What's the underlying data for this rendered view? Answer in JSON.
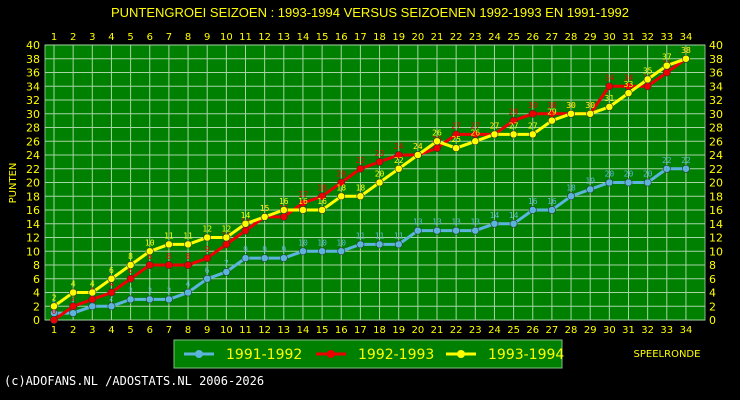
{
  "chart_data": {
    "type": "line",
    "title": "PUNTENGROEI  SEIZOEN : 1993-1994 VERSUS SEIZOENEN 1992-1993 EN 1991-1992",
    "xlabel": "SPEELRONDE",
    "ylabel": "PUNTEN",
    "x": [
      1,
      2,
      3,
      4,
      5,
      6,
      7,
      8,
      9,
      10,
      11,
      12,
      13,
      14,
      15,
      16,
      17,
      18,
      19,
      20,
      21,
      22,
      23,
      24,
      25,
      26,
      27,
      28,
      29,
      30,
      31,
      32,
      33,
      34
    ],
    "ylim": [
      0,
      40
    ],
    "yticks": [
      0,
      2,
      4,
      6,
      8,
      10,
      12,
      14,
      16,
      18,
      20,
      22,
      24,
      26,
      28,
      30,
      32,
      34,
      36,
      38,
      40
    ],
    "grid": true,
    "legend_position": "bottom",
    "series": [
      {
        "name": "1991-1992",
        "color": "#5bb4dc",
        "values": [
          1,
          1,
          2,
          2,
          3,
          3,
          3,
          4,
          6,
          7,
          9,
          9,
          9,
          10,
          10,
          10,
          11,
          11,
          11,
          13,
          13,
          13,
          13,
          14,
          14,
          16,
          16,
          18,
          19,
          20,
          20,
          20,
          22,
          22
        ]
      },
      {
        "name": "1992-1993",
        "color": "#ee0000",
        "values": [
          0,
          2,
          3,
          4,
          6,
          8,
          8,
          8,
          9,
          11,
          13,
          15,
          15,
          17,
          18,
          20,
          22,
          23,
          24,
          24,
          25,
          27,
          27,
          27,
          29,
          30,
          30,
          30,
          30,
          34,
          34,
          34,
          36,
          38
        ]
      },
      {
        "name": "1993-1994",
        "color": "#ffff00",
        "values": [
          2,
          4,
          4,
          6,
          8,
          10,
          11,
          11,
          12,
          12,
          14,
          15,
          16,
          16,
          16,
          18,
          18,
          20,
          22,
          24,
          26,
          25,
          26,
          27,
          27,
          27,
          29,
          30,
          30,
          31,
          33,
          35,
          37,
          38
        ]
      }
    ]
  },
  "footer": "(c)ADOFANS.NL /ADOSTATS.NL 2006-2026",
  "colors": {
    "background": "#000000",
    "plot_area": "#008000",
    "grid": "#9ccc9c",
    "text": "#ffff00"
  }
}
